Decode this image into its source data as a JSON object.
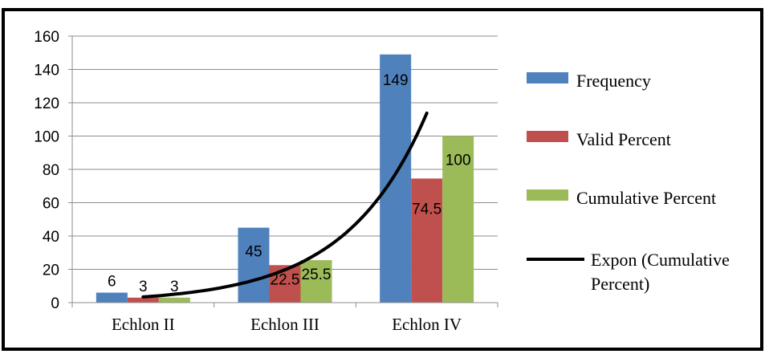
{
  "chart_data": {
    "type": "bar",
    "categories": [
      "Echlon II",
      "Echlon III",
      "Echlon IV"
    ],
    "series": [
      {
        "name": "Frequency",
        "values": [
          6,
          45,
          149
        ],
        "color": "#4F81BD"
      },
      {
        "name": "Valid Percent",
        "values": [
          3,
          22.5,
          74.5
        ],
        "color": "#C0504D"
      },
      {
        "name": "Cumulative Percent",
        "values": [
          3,
          25.5,
          100
        ],
        "color": "#9BBB59"
      }
    ],
    "data_labels": [
      [
        "6",
        "45",
        "149"
      ],
      [
        "3",
        "22.5",
        "74.5"
      ],
      [
        "3",
        "25.5",
        "100"
      ]
    ],
    "trendline": {
      "name": "Expon (Cumulative Percent)",
      "name_lines": [
        "Expon (Cumulative",
        "Percent)"
      ],
      "type": "exponential",
      "color": "#000000"
    },
    "yticks": [
      "0",
      "20",
      "40",
      "60",
      "80",
      "100",
      "120",
      "140",
      "160"
    ],
    "ylim": [
      0,
      160
    ],
    "grid": true,
    "legend_position": "right",
    "title": "",
    "xlabel": "",
    "ylabel": ""
  }
}
